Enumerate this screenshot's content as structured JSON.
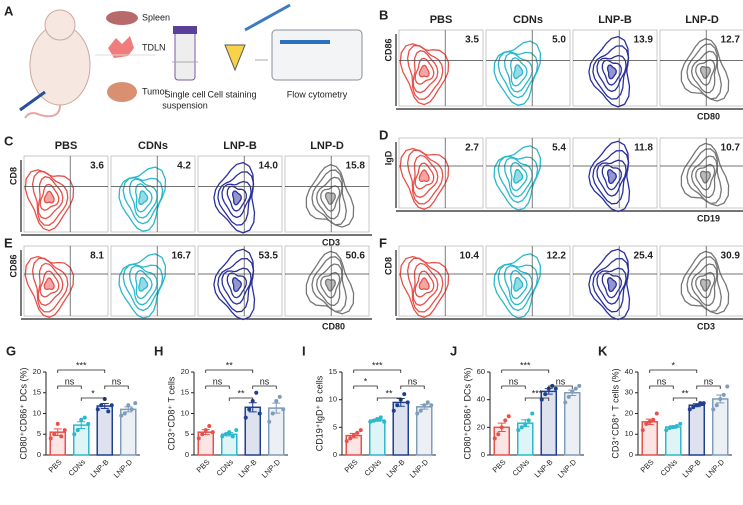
{
  "panel_a": {
    "letter": "A",
    "organs": [
      "Spleen",
      "TDLN",
      "Tumor"
    ],
    "steps": [
      [
        "Single cell",
        "suspension"
      ],
      [
        "Cell staining"
      ],
      [
        "Flow cytometry"
      ]
    ]
  },
  "flow_colors": [
    "#e8504a",
    "#2bb8cc",
    "#2a2f9e",
    "#777777"
  ],
  "flow_panels": [
    {
      "letter": "B",
      "headers": [
        "PBS",
        "CDNs",
        "LNP-B",
        "LNP-D"
      ],
      "y_label": "CD86",
      "x_label": "CD80",
      "gates": [
        "3.5",
        "5.0",
        "13.9",
        "12.7"
      ]
    },
    {
      "letter": "C",
      "headers": [
        "PBS",
        "CDNs",
        "LNP-B",
        "LNP-D"
      ],
      "y_label": "CD8",
      "x_label": "CD3",
      "gates": [
        "3.6",
        "4.2",
        "14.0",
        "15.8"
      ]
    },
    {
      "letter": "D",
      "y_label": "IgD",
      "x_label": "CD19",
      "gates": [
        "2.7",
        "5.4",
        "11.8",
        "10.7"
      ]
    },
    {
      "letter": "E",
      "y_label": "CD86",
      "x_label": "CD80",
      "gates": [
        "8.1",
        "16.7",
        "53.5",
        "50.6"
      ]
    },
    {
      "letter": "F",
      "y_label": "CD8",
      "x_label": "CD3",
      "gates": [
        "10.4",
        "12.2",
        "25.4",
        "30.9"
      ]
    }
  ],
  "chart_data": [
    {
      "type": "bar",
      "letter": "G",
      "ylabel": "CD80⁺CD86⁺ DCs (%)",
      "categories": [
        "PBS",
        "CDNs",
        "LNP-B",
        "LNP-D"
      ],
      "colors": [
        "#e8504a",
        "#2bb8cc",
        "#1f3f8f",
        "#7f9cb8"
      ],
      "values": [
        5.5,
        7.2,
        11.8,
        11.0
      ],
      "errors": [
        0.8,
        0.8,
        0.6,
        0.6
      ],
      "points": [
        [
          4,
          5,
          7.5,
          4.5,
          6
        ],
        [
          5,
          6,
          8.5,
          9,
          7.5
        ],
        [
          11,
          12,
          13.5,
          10.5,
          12
        ],
        [
          9.5,
          10,
          12,
          11,
          12.5
        ]
      ],
      "ylim": [
        0,
        20
      ],
      "yticks": [
        0,
        5,
        10,
        15,
        20
      ],
      "significance": [
        "ns",
        "***",
        "*",
        "ns"
      ]
    },
    {
      "type": "bar",
      "letter": "H",
      "ylabel": "CD3⁺CD8⁺ T cells",
      "categories": [
        "PBS",
        "CDNs",
        "LNP-B",
        "LNP-D"
      ],
      "colors": [
        "#e8504a",
        "#2bb8cc",
        "#1f3f8f",
        "#7f9cb8"
      ],
      "values": [
        5.5,
        5.0,
        11.5,
        11.3
      ],
      "errors": [
        0.6,
        0.4,
        1.1,
        1.2
      ],
      "points": [
        [
          4,
          5,
          6,
          7,
          5.5
        ],
        [
          4.5,
          5,
          5.5,
          4.5,
          6
        ],
        [
          9,
          11,
          13,
          15,
          10
        ],
        [
          8,
          10,
          13,
          14,
          11
        ]
      ],
      "ylim": [
        0,
        20
      ],
      "yticks": [
        0,
        5,
        10,
        15,
        20
      ],
      "significance": [
        "ns",
        "**",
        "**",
        "ns"
      ]
    },
    {
      "type": "bar",
      "letter": "I",
      "ylabel": "CD19⁺IgD⁺ B cells",
      "categories": [
        "PBS",
        "CDNs",
        "LNP-B",
        "LNP-D"
      ],
      "colors": [
        "#e8504a",
        "#2bb8cc",
        "#1f3f8f",
        "#7f9cb8"
      ],
      "values": [
        3.5,
        6.3,
        9.5,
        8.7
      ],
      "errors": [
        0.4,
        0.2,
        0.7,
        0.4
      ],
      "points": [
        [
          2.5,
          3,
          3.5,
          4,
          4.5
        ],
        [
          6,
          6.2,
          6.5,
          6.8,
          6
        ],
        [
          8,
          9,
          10,
          11,
          9.5
        ],
        [
          7.5,
          8,
          9,
          9.5,
          9
        ]
      ],
      "ylim": [
        0,
        15
      ],
      "yticks": [
        0,
        5,
        10,
        15
      ],
      "significance": [
        "*",
        "***",
        "**",
        "ns"
      ]
    },
    {
      "type": "bar",
      "letter": "J",
      "ylabel": "CD80⁺CD86⁺ DCs (%)",
      "categories": [
        "PBS",
        "CDNs",
        "LNP-B",
        "LNP-D"
      ],
      "colors": [
        "#e8504a",
        "#2bb8cc",
        "#1f3f8f",
        "#7f9cb8"
      ],
      "values": [
        20,
        23,
        46,
        45
      ],
      "errors": [
        3,
        2.5,
        2,
        2
      ],
      "points": [
        [
          12,
          15,
          20,
          25,
          28
        ],
        [
          18,
          20,
          22,
          25,
          30
        ],
        [
          40,
          44,
          48,
          50,
          48
        ],
        [
          38,
          42,
          46,
          48,
          50
        ]
      ],
      "ylim": [
        0,
        60
      ],
      "yticks": [
        0,
        20,
        40,
        60
      ],
      "significance": [
        "ns",
        "***",
        "***",
        "ns"
      ]
    },
    {
      "type": "bar",
      "letter": "K",
      "ylabel": "CD3⁺CD8⁺ T cells (%)",
      "categories": [
        "PBS",
        "CDNs",
        "LNP-B",
        "LNP-D"
      ],
      "colors": [
        "#e8504a",
        "#2bb8cc",
        "#1f3f8f",
        "#7f9cb8"
      ],
      "values": [
        16,
        13.5,
        24,
        27
      ],
      "errors": [
        1.3,
        0.6,
        0.7,
        1.9
      ],
      "points": [
        [
          12,
          15,
          16,
          17,
          20
        ],
        [
          12,
          13,
          13.5,
          14,
          15
        ],
        [
          22,
          23,
          24,
          25,
          25
        ],
        [
          22,
          24,
          27,
          29,
          33
        ]
      ],
      "ylim": [
        0,
        40
      ],
      "yticks": [
        0,
        10,
        20,
        30,
        40
      ],
      "significance": [
        "ns",
        "*",
        "**",
        "ns"
      ]
    }
  ]
}
